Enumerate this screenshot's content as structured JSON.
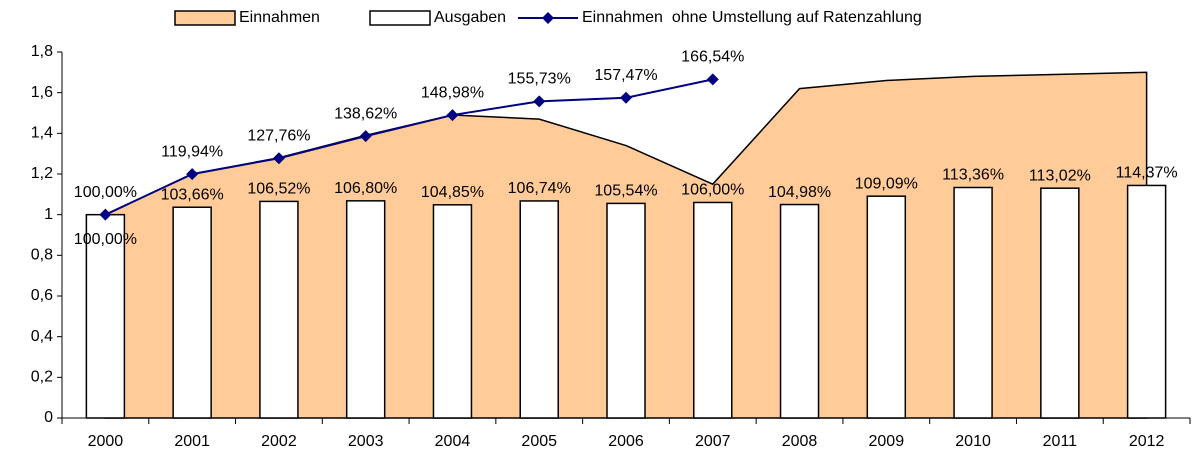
{
  "chart_data": {
    "type": "combo",
    "categories": [
      "2000",
      "2001",
      "2002",
      "2003",
      "2004",
      "2005",
      "2006",
      "2007",
      "2008",
      "2009",
      "2010",
      "2011",
      "2012"
    ],
    "ylim": [
      0,
      1.8
    ],
    "yticks": [
      0,
      {
        "value": 0.2,
        "label": "0,2"
      },
      {
        "value": 0.4,
        "label": "0,4"
      },
      {
        "value": 0.6,
        "label": "0,6"
      },
      {
        "value": 0.8,
        "label": "0,8"
      },
      1,
      {
        "value": 1.2,
        "label": "1,2"
      },
      {
        "value": 1.4,
        "label": "1,4"
      },
      {
        "value": 1.6,
        "label": "1,6"
      },
      {
        "value": 1.8,
        "label": "1,8"
      }
    ],
    "grid": false,
    "legend": "top",
    "series": [
      {
        "name": "Einnahmen",
        "kind": "area",
        "color": "#FFCC99",
        "values": [
          1.0,
          1.2,
          1.28,
          1.39,
          1.49,
          1.47,
          1.34,
          1.15,
          1.62,
          1.66,
          1.68,
          1.69,
          1.7
        ]
      },
      {
        "name": "Ausgaben",
        "kind": "bar",
        "color": "#FFFFFF",
        "values": [
          1.0,
          1.0366,
          1.0652,
          1.068,
          1.0485,
          1.0674,
          1.0554,
          1.06,
          1.0498,
          1.0909,
          1.1336,
          1.1302,
          1.1437
        ],
        "value_labels": [
          "100,00%",
          "103,66%",
          "106,52%",
          "106,80%",
          "104,85%",
          "106,74%",
          "105,54%",
          "106,00%",
          "104,98%",
          "109,09%",
          "113,36%",
          "113,02%",
          "114,37%"
        ]
      },
      {
        "name": "Einnahmen  ohne Umstellung auf Ratenzahlung",
        "kind": "line",
        "color": "#000080",
        "values": [
          1.0,
          1.1994,
          1.2776,
          1.3862,
          1.4898,
          1.5573,
          1.5747,
          1.6654,
          null,
          null,
          null,
          null,
          null
        ],
        "value_labels": [
          "100,00%",
          "119,94%",
          "127,76%",
          "138,62%",
          "148,98%",
          "155,73%",
          "157,47%",
          "166,54%",
          null,
          null,
          null,
          null,
          null
        ]
      }
    ]
  }
}
